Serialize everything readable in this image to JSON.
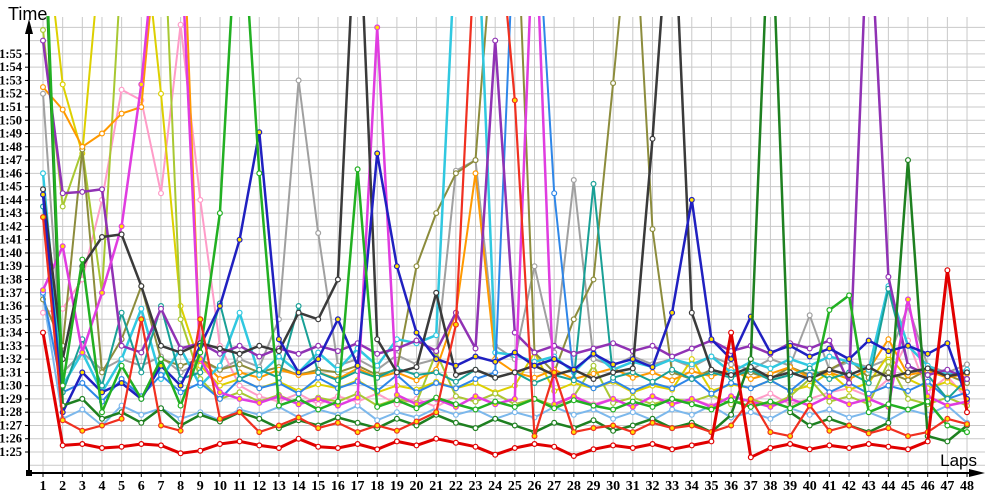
{
  "page": {
    "background": "#ffffff",
    "grid_color": "#c9c9c9",
    "axis_color": "#000000"
  },
  "chart_data": {
    "type": "line",
    "title": "",
    "xlabel": "Laps",
    "ylabel": "Time",
    "grid": true,
    "legend": "none",
    "x_ticks": [
      1,
      2,
      3,
      4,
      5,
      6,
      7,
      8,
      9,
      10,
      11,
      12,
      13,
      14,
      15,
      16,
      17,
      18,
      19,
      20,
      21,
      22,
      23,
      24,
      25,
      26,
      27,
      28,
      29,
      30,
      31,
      32,
      33,
      34,
      35,
      36,
      37,
      38,
      39,
      40,
      41,
      42,
      43,
      44,
      45,
      46,
      47,
      48
    ],
    "y_tick_labels": [
      "1:25",
      "1:26",
      "1:27",
      "1:28",
      "1:29",
      "1:30",
      "1:31",
      "1:32",
      "1:33",
      "1:34",
      "1:35",
      "1:36",
      "1:37",
      "1:38",
      "1:39",
      "1:40",
      "1:41",
      "1:42",
      "1:43",
      "1:44",
      "1:45",
      "1:46",
      "1:47",
      "1:48",
      "1:49",
      "1:50",
      "1:51",
      "1:52",
      "1:53",
      "1:54",
      "1:55"
    ],
    "y_min_sec": 85,
    "y_max_sec": 115,
    "y_axis_note": "values are lap times in seconds; 85 = 1:25, 115 = 1:55; values above ~117.6 run off the top of the plot",
    "series": [
      {
        "name": "gray",
        "color": "#a0a0a0",
        "width": 2,
        "marker_fill": "#ffffff",
        "values": [
          112,
          91,
          92.5,
          91.2,
          92,
          91.5,
          92.2,
          91,
          91.8,
          91.2,
          92,
          91.4,
          95,
          113,
          101.5,
          91.5,
          92,
          91.2,
          92.3,
          91.6,
          92,
          106.2,
          107,
          93,
          92,
          99,
          92.5,
          105.5,
          92,
          91.5,
          92.2,
          91.6,
          92,
          91.4,
          92.2,
          91.6,
          91.2,
          92,
          91.5,
          95.3,
          91.2,
          91.8,
          91.4,
          92,
          96,
          91.5,
          91,
          91.6
        ]
      },
      {
        "name": "lightblue",
        "color": "#7cb8ec",
        "width": 2,
        "marker_fill": "#ffffff",
        "values": [
          96.8,
          87.5,
          88.2,
          87,
          88.5,
          87.8,
          88.3,
          87.5,
          88,
          87.4,
          88.2,
          87.8,
          88.4,
          87.6,
          88.2,
          87.8,
          88.5,
          87.4,
          88,
          87.6,
          88.3,
          87.8,
          88.2,
          87.5,
          88,
          87.6,
          88.4,
          87.8,
          88.2,
          87.5,
          88,
          87.4,
          88.2,
          87.8,
          88.5,
          87.6,
          88,
          87.5,
          88.3,
          87.8,
          88.2,
          87.6,
          88,
          87.4,
          88.2,
          87.8,
          88.5,
          87.2
        ]
      },
      {
        "name": "pink",
        "color": "#ff9cc8",
        "width": 2,
        "marker_fill": "#ffffff",
        "values": [
          95.5,
          95.8,
          98,
          104,
          112.3,
          111.5,
          104.5,
          117.2,
          104,
          93,
          90,
          89.2,
          88.8,
          89.4,
          88.6,
          89.2,
          88.8,
          89.4,
          88.6,
          89,
          88.4,
          89.2,
          88.8,
          89.4,
          88.6,
          89,
          88.5,
          89.2,
          88.6,
          89,
          88.4,
          89.2,
          88.6,
          89,
          88.5,
          89.2,
          88.8,
          89.4,
          88.6,
          89,
          89.5,
          89.8,
          89.2,
          90.5,
          93.4,
          89.5,
          90.7,
          89
        ]
      },
      {
        "name": "yellow",
        "color": "#ddd000",
        "width": 2,
        "marker_fill": "#ffffff",
        "values": [
          126,
          112.7,
          107.5,
          124,
          130,
          126,
          112,
          96,
          91.5,
          90,
          90.5,
          89.8,
          90.3,
          89.6,
          90.1,
          89.8,
          90.4,
          89.5,
          90,
          89.7,
          90.3,
          89.8,
          90.2,
          89.5,
          90,
          92.5,
          89.6,
          90.2,
          89.8,
          90.3,
          89.5,
          90,
          89.7,
          92,
          89.6,
          90.1,
          89.8,
          90.4,
          89.6,
          90,
          91,
          89.7,
          90.2,
          92.3,
          90.5,
          89.8,
          90.3,
          89.5
        ]
      },
      {
        "name": "yellowgreen",
        "color": "#a8c832",
        "width": 2,
        "marker_fill": "#ffffff",
        "values": [
          116.8,
          103.5,
          107.8,
          97,
          122,
          128,
          130,
          95,
          90.5,
          89,
          89.5,
          88.8,
          89.3,
          88.6,
          89.1,
          88.8,
          89.4,
          88.5,
          89,
          88.7,
          92.5,
          89.2,
          88.8,
          89.4,
          88.6,
          89,
          88.5,
          89.2,
          91.5,
          88.7,
          89.1,
          88.6,
          89,
          88.8,
          89.3,
          88.6,
          89,
          88.5,
          89.2,
          90.5,
          88.8,
          89.2,
          88.6,
          91.8,
          89,
          88.6,
          89.1,
          88.5
        ]
      },
      {
        "name": "olive",
        "color": "#8c8c3c",
        "width": 2,
        "marker_fill": "#ffffff",
        "values": [
          96.5,
          93,
          107.8,
          91,
          93.5,
          97.5,
          92,
          91.5,
          92,
          91.2,
          91.6,
          91,
          91.4,
          90.8,
          91.2,
          91,
          91.5,
          90.8,
          91.2,
          99,
          103,
          106,
          107,
          126,
          130,
          92.5,
          91,
          95,
          98,
          112.8,
          128,
          101.8,
          91,
          90.5,
          91.2,
          90.8,
          91,
          90.5,
          91.4,
          90.8,
          91.2,
          92,
          90.6,
          91,
          90.4,
          91.2,
          90.8,
          90.2
        ]
      },
      {
        "name": "orange",
        "color": "#ff9900",
        "width": 2,
        "marker_fill": "#ffffff",
        "values": [
          112.5,
          110.8,
          108,
          109,
          110.5,
          111,
          127,
          130,
          92,
          90.5,
          91,
          90.6,
          91.2,
          90.8,
          91,
          90.5,
          91.3,
          90.6,
          91,
          90.4,
          91.2,
          95.5,
          106,
          92,
          91,
          90.6,
          91.2,
          90.5,
          90.9,
          91.3,
          90.6,
          91,
          90.4,
          91.1,
          90.7,
          91.2,
          90.5,
          90.9,
          91.4,
          90.6,
          91,
          90.5,
          91.2,
          93.5,
          90.8,
          91.1,
          90.6,
          90.9
        ]
      },
      {
        "name": "cyan",
        "color": "#30c8e0",
        "width": 2.5,
        "marker_fill": "#ffffff",
        "values": [
          106,
          90,
          92.5,
          89.5,
          92,
          95.8,
          90.5,
          92.8,
          90,
          91.5,
          95.5,
          90.8,
          92.2,
          91,
          92.5,
          91.2,
          92.8,
          91.5,
          93.5,
          93.2,
          93.8,
          124,
          129,
          92.5,
          92.3,
          91.8,
          92.2,
          91,
          92.5,
          91.2,
          91.8,
          91.4,
          92,
          91.6,
          92.2,
          91,
          91.8,
          91.3,
          92,
          91.5,
          92.2,
          91.8,
          91.2,
          97.5,
          93,
          91.5,
          90.8,
          91.2
        ]
      },
      {
        "name": "dodgerblue",
        "color": "#2e86e8",
        "width": 2,
        "marker_fill": "#ffffff",
        "values": [
          97,
          89.5,
          90.2,
          88.8,
          90.5,
          89.2,
          90.8,
          89.5,
          90.2,
          89,
          90.5,
          89.8,
          90.2,
          89.4,
          90.6,
          89.8,
          90.3,
          89.6,
          90.8,
          89.5,
          90.2,
          89.8,
          90.5,
          91,
          126,
          129,
          104.5,
          90.5,
          89.8,
          90.4,
          89.6,
          90.2,
          89.8,
          90.6,
          89.4,
          90.2,
          89.8,
          90.4,
          89.6,
          90.8,
          89.5,
          90.2,
          89.4,
          90,
          89.6,
          90.3,
          89,
          89.5
        ]
      },
      {
        "name": "teal",
        "color": "#18a096",
        "width": 2,
        "marker_fill": "#ffffff",
        "values": [
          103.5,
          89.5,
          93.5,
          90,
          95.5,
          91,
          96,
          90.5,
          91,
          96.2,
          90.5,
          91.2,
          90.6,
          96,
          91,
          90.4,
          91.1,
          90.6,
          91.3,
          90.8,
          91,
          90.3,
          91.2,
          90.6,
          91,
          90.2,
          90.8,
          90.4,
          105.2,
          90.6,
          91,
          90.3,
          91.2,
          90.5,
          91,
          90.6,
          91.2,
          90.4,
          90.8,
          91.3,
          90.5,
          91,
          90.2,
          97.3,
          91.5,
          90.8,
          89,
          90.5
        ]
      },
      {
        "name": "purple",
        "color": "#9032b4",
        "width": 2.5,
        "marker_fill": "#ffffff",
        "values": [
          116,
          104.5,
          104.6,
          104.8,
          93,
          92.5,
          95.8,
          92.8,
          93.2,
          92.4,
          93,
          92.2,
          92.8,
          92.4,
          93,
          92.6,
          93.2,
          92.4,
          92.8,
          93.4,
          92.6,
          95.5,
          92.8,
          116,
          94,
          92.5,
          93,
          92.4,
          92.8,
          93.2,
          92.6,
          93,
          92.2,
          92.8,
          93.4,
          92.6,
          93,
          92.4,
          93.2,
          92.8,
          93.4,
          90.2,
          127,
          98.2,
          91.5,
          90.8,
          91.2,
          90.5
        ]
      },
      {
        "name": "magenta",
        "color": "#e03ce0",
        "width": 2.5,
        "marker_fill": "#ffe000",
        "values": [
          97.2,
          100.5,
          92.5,
          97,
          102,
          112.7,
          128,
          124,
          92,
          89.5,
          89,
          88.7,
          89.2,
          88.6,
          89,
          88.5,
          89.1,
          117,
          89.3,
          88.6,
          89,
          88.4,
          89.2,
          88.6,
          89,
          127,
          88.6,
          89.2,
          88.5,
          89,
          88.4,
          89.2,
          88.6,
          89,
          88.4,
          89.2,
          88.8,
          88.4,
          89,
          88.5,
          89.2,
          88.6,
          89,
          88.4,
          96.5,
          89.2,
          88.5,
          88.8
        ]
      },
      {
        "name": "black",
        "color": "#3a3a3a",
        "width": 2.5,
        "marker_fill": "#ffffff",
        "values": [
          104.8,
          92,
          99,
          101.2,
          101.4,
          97.5,
          93,
          92.5,
          93.2,
          92.8,
          92.4,
          93,
          92.6,
          95.5,
          95,
          98,
          129,
          93.5,
          91,
          91.4,
          97,
          90.8,
          91.2,
          90.6,
          91,
          91.5,
          90.8,
          91.2,
          90.5,
          91,
          91.3,
          108.6,
          129,
          95.5,
          91.2,
          90.8,
          91.4,
          90.6,
          91,
          90.5,
          91.2,
          90.8,
          91.4,
          90.6,
          91,
          91.3,
          90.7,
          91
        ]
      },
      {
        "name": "navy",
        "color": "#2020c0",
        "width": 2.5,
        "marker_fill": "#ffe000",
        "values": [
          104.4,
          88,
          91,
          89.5,
          90.2,
          89,
          91.5,
          90,
          93,
          96,
          101,
          109.1,
          93.5,
          91,
          92,
          95,
          91.5,
          107.5,
          99,
          94,
          92,
          91.5,
          92.2,
          91.8,
          92.5,
          91.5,
          92,
          91.2,
          92.4,
          91.6,
          92,
          91.4,
          95.5,
          104,
          93.5,
          92,
          95.2,
          92.5,
          93,
          92.2,
          92.8,
          92,
          93.4,
          92.6,
          93,
          92.4,
          93.2,
          89
        ]
      },
      {
        "name": "forestgreen",
        "color": "#1e8020",
        "width": 2.5,
        "marker_fill": "#ffffff",
        "values": [
          127,
          88.5,
          89,
          87.5,
          88,
          87.2,
          88.3,
          87,
          87.8,
          87.3,
          88,
          87.5,
          86.8,
          87.4,
          87,
          87.6,
          87.2,
          86.8,
          87.5,
          87,
          87.8,
          87.2,
          86.8,
          87.5,
          87,
          86.5,
          87.2,
          86.8,
          87.4,
          86.6,
          87,
          87.5,
          86.8,
          87.2,
          86.5,
          87.8,
          92,
          128,
          88,
          87,
          87.5,
          87,
          86.5,
          87.2,
          107,
          86.2,
          85.8,
          87
        ]
      },
      {
        "name": "green",
        "color": "#22b022",
        "width": 2.5,
        "marker_fill": "#ffffff",
        "values": [
          128,
          90,
          99.5,
          88,
          91.5,
          89,
          92,
          88.5,
          92.5,
          103,
          129,
          106,
          88.5,
          89,
          88.2,
          88.8,
          106.3,
          88.4,
          88.9,
          88.3,
          89.1,
          88.6,
          88.2,
          88.8,
          88.4,
          89,
          88.3,
          88.9,
          88.5,
          88.2,
          88.8,
          88.4,
          89,
          88.6,
          88.2,
          88.9,
          88.4,
          88.8,
          88.3,
          89,
          95.7,
          96.8,
          88,
          88.6,
          88.2,
          88.8,
          87,
          86.5
        ]
      },
      {
        "name": "crimson",
        "color": "#f03020",
        "width": 2.2,
        "marker_fill": "#ffe000",
        "values": [
          102.7,
          87.4,
          86.6,
          87,
          87.5,
          95,
          87,
          86.6,
          95,
          87.5,
          88,
          86.5,
          87,
          87.6,
          86.8,
          87.2,
          86.5,
          87,
          86.6,
          87.3,
          88,
          94.6,
          124,
          128,
          111.5,
          86.2,
          91,
          86.5,
          86.8,
          87,
          86.5,
          87.2,
          86.8,
          87,
          86.5,
          87,
          89,
          86.5,
          86.2,
          88.5,
          86.6,
          87,
          86.4,
          86.8,
          86.2,
          86.5,
          87.5,
          87.1
        ]
      },
      {
        "name": "red",
        "color": "#e10000",
        "width": 3,
        "marker_fill": "#ffffff",
        "values": [
          94,
          85.5,
          85.6,
          85.3,
          85.4,
          85.6,
          85.5,
          84.9,
          85.1,
          85.6,
          85.8,
          85.5,
          85.3,
          86,
          85.4,
          85.3,
          85.6,
          85.2,
          85.8,
          85.5,
          86,
          85.7,
          85.4,
          84.8,
          85.3,
          85.6,
          85.4,
          84.7,
          85.2,
          85.5,
          85.3,
          85.6,
          85.2,
          85.5,
          85.8,
          94,
          84.6,
          85.3,
          85.6,
          85.2,
          85.5,
          85.3,
          85.6,
          85.4,
          85.2,
          85.8,
          98.7,
          88
        ]
      }
    ]
  }
}
